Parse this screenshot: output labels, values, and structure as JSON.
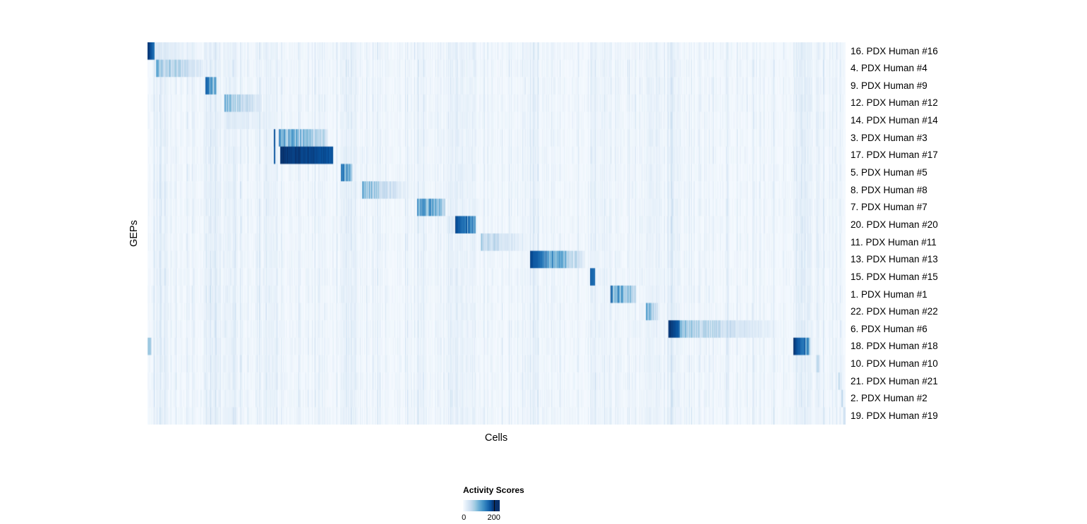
{
  "chart_data": {
    "type": "heatmap",
    "xlabel": "Cells",
    "ylabel": "GEPs",
    "legend_title": "Activity Scores",
    "colorbar_tick_labels": [
      "0",
      "200"
    ],
    "colorbar_tick_values": [
      0,
      200
    ],
    "legend_max_fraction": 0.84,
    "colormap_stops": [
      {
        "t": 0.0,
        "c": "#f7fbff"
      },
      {
        "t": 0.13,
        "c": "#deebf7"
      },
      {
        "t": 0.26,
        "c": "#c6dbef"
      },
      {
        "t": 0.39,
        "c": "#9ecae1"
      },
      {
        "t": 0.52,
        "c": "#6baed6"
      },
      {
        "t": 0.65,
        "c": "#4292c6"
      },
      {
        "t": 0.78,
        "c": "#2171b5"
      },
      {
        "t": 0.9,
        "c": "#08519c"
      },
      {
        "t": 1.0,
        "c": "#08306b"
      }
    ],
    "column_stripes": [
      [
        0.012,
        0.03,
        0.04
      ],
      [
        0.083,
        0.103,
        0.06
      ],
      [
        0.108,
        0.126,
        0.05
      ],
      [
        0.166,
        0.186,
        0.05
      ],
      [
        0.277,
        0.3,
        0.05
      ],
      [
        0.386,
        0.4,
        0.03
      ],
      [
        0.428,
        0.466,
        0.04
      ],
      [
        0.543,
        0.561,
        0.03
      ],
      [
        0.634,
        0.66,
        0.03
      ],
      [
        0.714,
        0.733,
        0.04
      ],
      [
        0.745,
        0.763,
        0.05
      ],
      [
        0.925,
        0.952,
        0.06
      ],
      [
        0.957,
        0.965,
        0.03
      ]
    ],
    "rows": [
      {
        "label": "16. PDX Human #16",
        "blocks": [
          [
            0.0,
            0.01,
            1.0,
            0.78
          ],
          [
            0.01,
            0.078,
            0.16,
            0.03
          ]
        ]
      },
      {
        "label": "4. PDX Human #4",
        "blocks": [
          [
            0.012,
            0.086,
            0.44,
            0.08
          ]
        ]
      },
      {
        "label": "9. PDX Human #9",
        "blocks": [
          [
            0.083,
            0.099,
            0.85,
            0.5
          ]
        ]
      },
      {
        "label": "12. PDX Human #12",
        "blocks": [
          [
            0.11,
            0.164,
            0.45,
            0.1
          ]
        ]
      },
      {
        "label": "14. PDX Human #14",
        "blocks": [
          [
            0.112,
            0.182,
            0.13,
            0.05
          ]
        ]
      },
      {
        "label": "3. PDX Human #3",
        "blocks": [
          [
            0.1805,
            0.1835,
            0.95,
            0.9
          ],
          [
            0.188,
            0.258,
            0.62,
            0.25
          ]
        ]
      },
      {
        "label": "17. PDX Human #17",
        "blocks": [
          [
            0.1805,
            0.1835,
            0.9,
            0.85
          ],
          [
            0.19,
            0.266,
            1.0,
            0.9
          ]
        ]
      },
      {
        "label": "5. PDX Human #5",
        "blocks": [
          [
            0.277,
            0.293,
            0.8,
            0.45
          ]
        ]
      },
      {
        "label": "8. PDX Human #8",
        "blocks": [
          [
            0.307,
            0.372,
            0.5,
            0.06
          ]
        ]
      },
      {
        "label": "7. PDX Human #7",
        "blocks": [
          [
            0.386,
            0.427,
            0.75,
            0.35
          ]
        ]
      },
      {
        "label": "20. PDX Human #20",
        "blocks": [
          [
            0.43,
            0.441,
            0.18,
            0.12
          ],
          [
            0.441,
            0.47,
            0.95,
            0.55
          ]
        ]
      },
      {
        "label": "11. PDX Human #11",
        "blocks": [
          [
            0.477,
            0.543,
            0.36,
            0.05
          ]
        ]
      },
      {
        "label": "13. PDX Human #13",
        "blocks": [
          [
            0.548,
            0.627,
            0.95,
            0.1
          ]
        ]
      },
      {
        "label": "15. PDX Human #15",
        "blocks": [
          [
            0.634,
            0.641,
            0.9,
            0.6
          ]
        ]
      },
      {
        "label": "1. PDX Human #1",
        "blocks": [
          [
            0.663,
            0.7,
            0.7,
            0.28
          ]
        ]
      },
      {
        "label": "22. PDX Human #22",
        "blocks": [
          [
            0.714,
            0.731,
            0.55,
            0.22
          ]
        ]
      },
      {
        "label": "6. PDX Human #6",
        "blocks": [
          [
            0.746,
            0.762,
            1.0,
            0.85
          ],
          [
            0.762,
            0.912,
            0.42,
            0.02
          ]
        ]
      },
      {
        "label": "18. PDX Human #18",
        "blocks": [
          [
            0.0,
            0.006,
            0.5,
            0.3
          ],
          [
            0.925,
            0.949,
            1.0,
            0.6
          ]
        ]
      },
      {
        "label": "10. PDX Human #10",
        "blocks": [
          [
            0.958,
            0.963,
            0.35,
            0.18
          ]
        ]
      },
      {
        "label": "21. PDX Human #21",
        "blocks": [
          [
            0.99,
            0.994,
            0.28,
            0.15
          ]
        ]
      },
      {
        "label": "2. PDX Human #2",
        "blocks": [
          [
            0.994,
            0.997,
            0.28,
            0.15
          ]
        ]
      },
      {
        "label": "19. PDX Human #19",
        "blocks": [
          [
            0.997,
            1.0,
            0.32,
            0.15
          ]
        ]
      }
    ]
  }
}
